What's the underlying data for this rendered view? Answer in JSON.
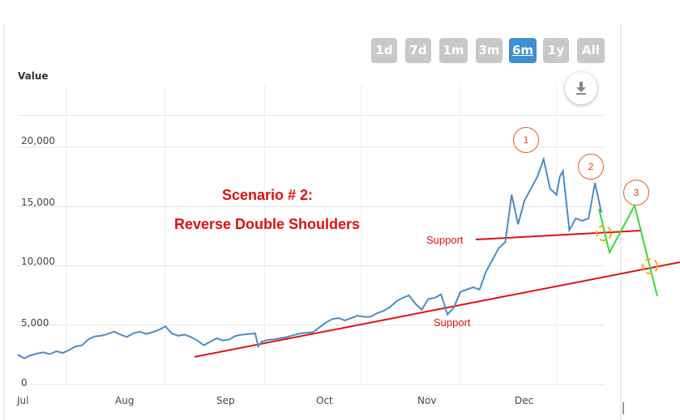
{
  "toolbar": {
    "ranges": [
      "1d",
      "7d",
      "1m",
      "3m",
      "6m",
      "1y",
      "All"
    ],
    "active": "6m"
  },
  "download_icon": "download-icon",
  "chart_data": {
    "type": "line",
    "ylabel": "Value",
    "yticks": [
      "0",
      "5,000",
      "10,000",
      "15,000",
      "20,000"
    ],
    "ylim": [
      0,
      22000
    ],
    "xticks": [
      "Jul",
      "Aug",
      "Sep",
      "Oct",
      "Nov",
      "Dec"
    ],
    "xlim": [
      "2017-07-01",
      "2017-12-31"
    ],
    "grid": true,
    "color": "#4a8bc4",
    "series": [
      {
        "x": [
          "2017-07-01",
          "2017-07-03",
          "2017-07-05",
          "2017-07-07",
          "2017-07-09",
          "2017-07-11",
          "2017-07-13",
          "2017-07-15",
          "2017-07-17",
          "2017-07-19",
          "2017-07-21",
          "2017-07-23",
          "2017-07-25",
          "2017-07-27",
          "2017-07-29",
          "2017-07-31",
          "2017-08-02",
          "2017-08-04",
          "2017-08-06",
          "2017-08-08",
          "2017-08-10",
          "2017-08-12",
          "2017-08-14",
          "2017-08-16",
          "2017-08-18",
          "2017-08-20",
          "2017-08-22",
          "2017-08-24",
          "2017-08-26",
          "2017-08-28",
          "2017-08-30",
          "2017-09-01",
          "2017-09-03",
          "2017-09-05",
          "2017-09-07",
          "2017-09-09",
          "2017-09-11",
          "2017-09-13",
          "2017-09-14",
          "2017-09-15",
          "2017-09-17",
          "2017-09-19",
          "2017-09-21",
          "2017-09-23",
          "2017-09-25",
          "2017-09-27",
          "2017-09-29",
          "2017-10-01",
          "2017-10-03",
          "2017-10-05",
          "2017-10-07",
          "2017-10-09",
          "2017-10-11",
          "2017-10-13",
          "2017-10-15",
          "2017-10-17",
          "2017-10-19",
          "2017-10-21",
          "2017-10-23",
          "2017-10-25",
          "2017-10-27",
          "2017-10-29",
          "2017-10-31",
          "2017-11-02",
          "2017-11-04",
          "2017-11-06",
          "2017-11-08",
          "2017-11-10",
          "2017-11-12",
          "2017-11-14",
          "2017-11-16",
          "2017-11-18",
          "2017-11-20",
          "2017-11-22",
          "2017-11-24",
          "2017-11-26",
          "2017-11-28",
          "2017-11-30",
          "2017-12-02",
          "2017-12-04",
          "2017-12-06",
          "2017-12-08",
          "2017-12-10",
          "2017-12-12",
          "2017-12-14",
          "2017-12-16",
          "2017-12-17",
          "2017-12-18",
          "2017-12-20",
          "2017-12-22",
          "2017-12-24",
          "2017-12-26",
          "2017-12-28",
          "2017-12-30"
        ],
        "y": [
          2500,
          2200,
          2450,
          2600,
          2700,
          2550,
          2800,
          2650,
          2900,
          3200,
          3300,
          3800,
          4050,
          4100,
          4250,
          4450,
          4200,
          4000,
          4300,
          4450,
          4250,
          4400,
          4600,
          4900,
          4300,
          4100,
          4200,
          4000,
          3700,
          3300,
          3600,
          3900,
          3700,
          3800,
          4100,
          4200,
          4250,
          4300,
          3200,
          3600,
          3750,
          3800,
          3900,
          4000,
          4150,
          4300,
          4350,
          4400,
          4800,
          5200,
          5500,
          5600,
          5400,
          5600,
          5800,
          5700,
          5700,
          6000,
          6200,
          6500,
          7000,
          7300,
          7500,
          6800,
          6300,
          7200,
          7300,
          7600,
          5900,
          6500,
          7800,
          8000,
          8200,
          8000,
          9500,
          10500,
          11500,
          12000,
          16000,
          13500,
          15500,
          16500,
          17500,
          19000,
          16500,
          16000,
          17500,
          18000,
          13000,
          14000,
          13800,
          14000,
          17000,
          14500
        ]
      }
    ]
  },
  "annotations": {
    "scenario_line1": "Scenario # 2:",
    "scenario_line2": "Reverse Double Shoulders",
    "support_upper": "Support",
    "support_lower": "Support",
    "markers": [
      "1",
      "2",
      "3"
    ]
  }
}
